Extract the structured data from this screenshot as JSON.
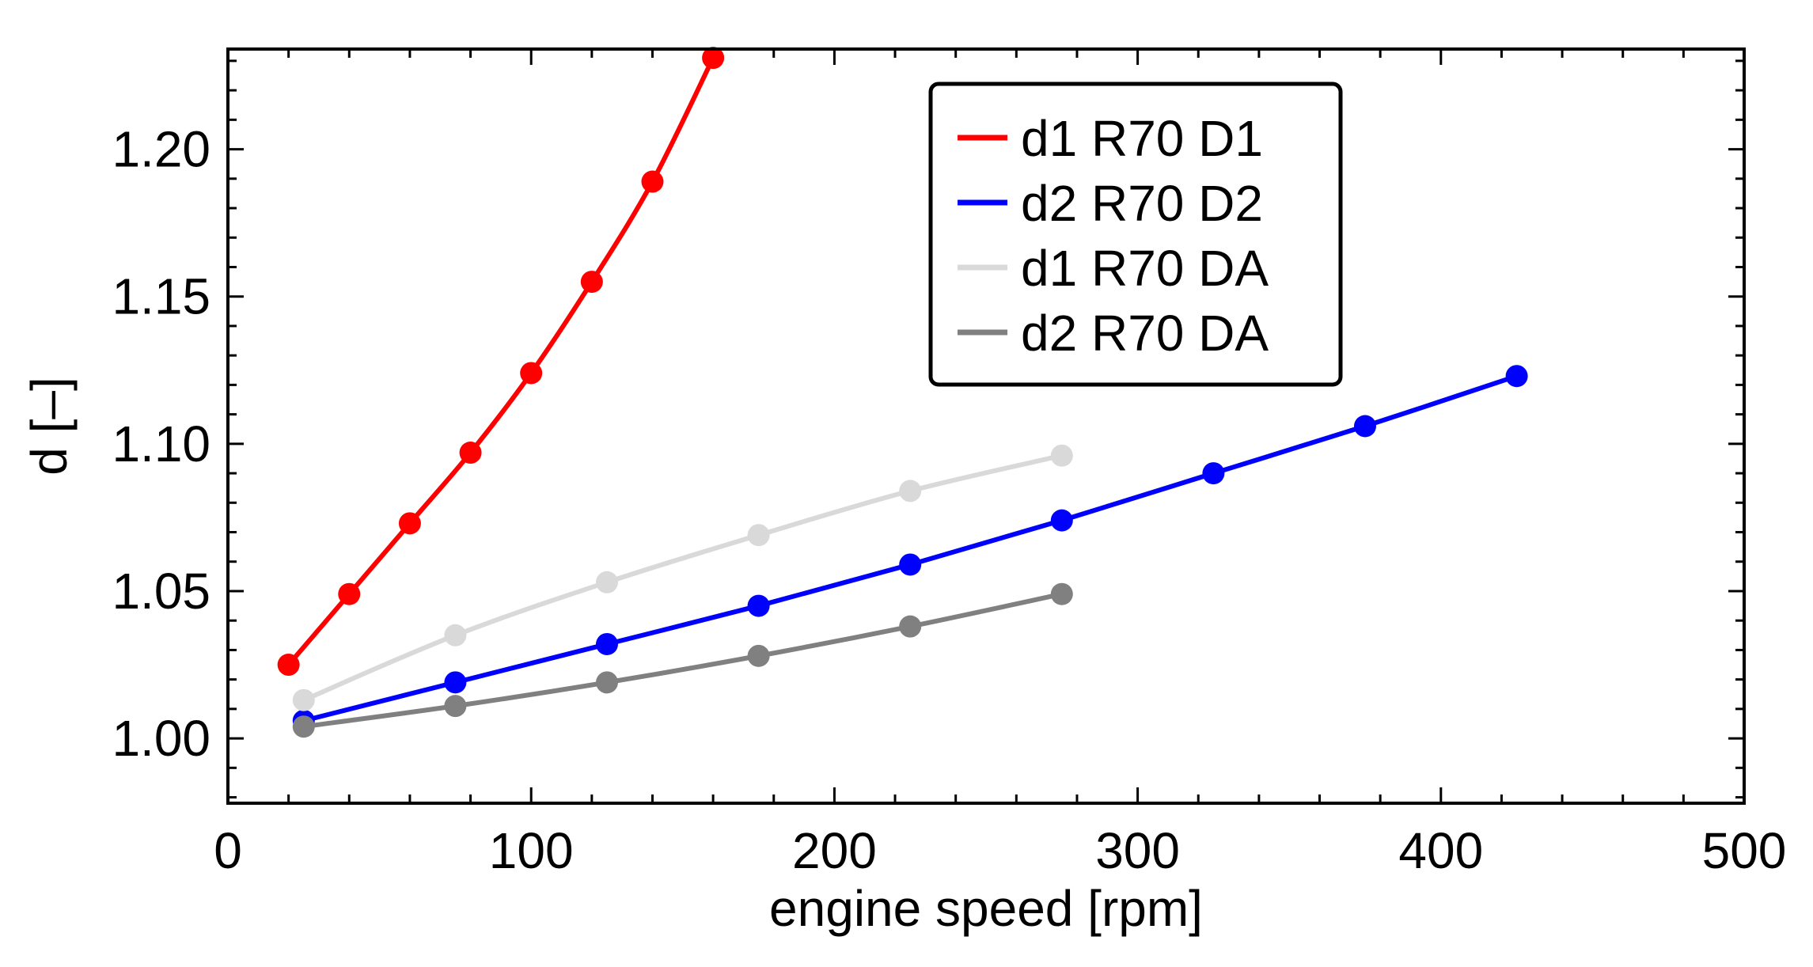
{
  "chart_data": {
    "type": "line",
    "title": "",
    "xlabel": "engine speed [rpm]",
    "ylabel": "d [–]",
    "xlim": [
      0,
      500
    ],
    "ylim": [
      0.978,
      1.234
    ],
    "x_ticks": [
      0,
      100,
      200,
      300,
      400,
      500
    ],
    "x_tick_labels": [
      "0",
      "100",
      "200",
      "300",
      "400",
      "500"
    ],
    "y_ticks": [
      1.0,
      1.05,
      1.1,
      1.15,
      1.2
    ],
    "y_tick_labels": [
      "1.00",
      "1.05",
      "1.10",
      "1.15",
      "1.20"
    ],
    "grid": false,
    "legend_position": "top-center",
    "series": [
      {
        "name": "d1 R70 D1",
        "color": "#ff0000",
        "x": [
          20,
          40,
          60,
          80,
          100,
          120,
          140,
          160
        ],
        "y": [
          1.025,
          1.049,
          1.073,
          1.097,
          1.124,
          1.155,
          1.189,
          1.231
        ]
      },
      {
        "name": "d2 R70 D2",
        "color": "#0000ff",
        "x": [
          25,
          75,
          125,
          175,
          225,
          275,
          325,
          375,
          425
        ],
        "y": [
          1.006,
          1.019,
          1.032,
          1.045,
          1.059,
          1.074,
          1.09,
          1.106,
          1.123
        ]
      },
      {
        "name": "d1 R70 DA",
        "color": "#d9d9d9",
        "x": [
          25,
          75,
          125,
          175,
          225,
          275
        ],
        "y": [
          1.013,
          1.035,
          1.053,
          1.069,
          1.084,
          1.096
        ]
      },
      {
        "name": "d2 R70 DA",
        "color": "#808080",
        "x": [
          25,
          75,
          125,
          175,
          225,
          275
        ],
        "y": [
          1.004,
          1.011,
          1.019,
          1.028,
          1.038,
          1.049
        ]
      }
    ]
  }
}
